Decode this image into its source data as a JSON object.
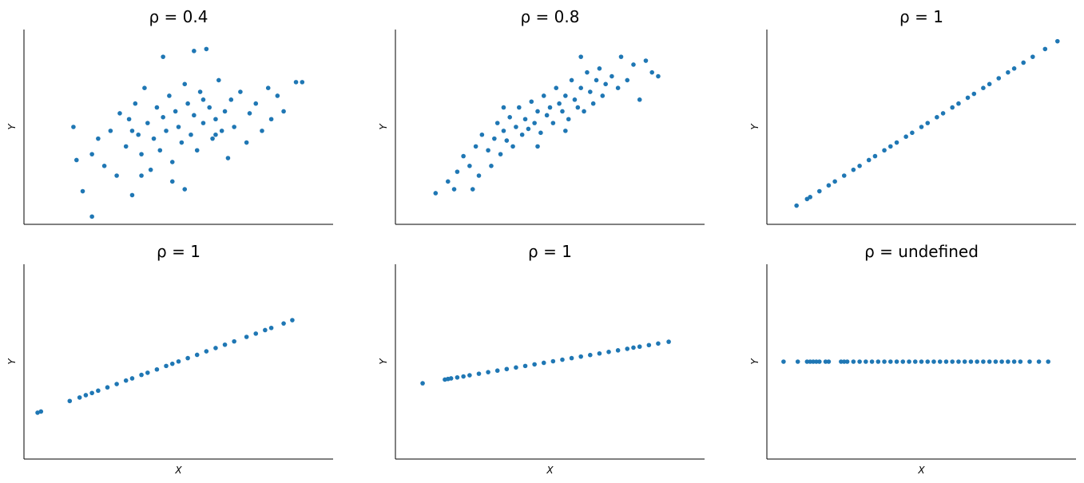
{
  "chart_data": [
    {
      "type": "scatter",
      "title": "ρ = 0.4",
      "ylabel": "Y",
      "color": "#1f77b4",
      "xlim": [
        0,
        100
      ],
      "ylim": [
        0,
        100
      ],
      "x": [
        16,
        17,
        19,
        22,
        22,
        24,
        26,
        28,
        30,
        31,
        33,
        34,
        35,
        36,
        37,
        38,
        39,
        40,
        41,
        42,
        43,
        44,
        45,
        46,
        47,
        48,
        49,
        50,
        51,
        52,
        53,
        54,
        55,
        56,
        57,
        58,
        59,
        60,
        61,
        62,
        63,
        64,
        65,
        66,
        67,
        68,
        70,
        72,
        73,
        75,
        77,
        79,
        80,
        82,
        84,
        88,
        90,
        55,
        45,
        62,
        48,
        52,
        38,
        35,
        58
      ],
      "values": [
        50,
        33,
        17,
        4,
        36,
        44,
        30,
        48,
        25,
        57,
        40,
        54,
        15,
        62,
        46,
        36,
        70,
        52,
        28,
        44,
        60,
        38,
        55,
        48,
        66,
        32,
        58,
        50,
        42,
        72,
        62,
        46,
        56,
        38,
        68,
        52,
        90,
        60,
        44,
        54,
        74,
        48,
        58,
        34,
        64,
        50,
        68,
        42,
        57,
        62,
        48,
        70,
        54,
        66,
        58,
        73,
        73,
        89,
        86,
        46,
        22,
        18,
        25,
        48,
        64
      ]
    },
    {
      "type": "scatter",
      "title": "ρ = 0.8",
      "ylabel": "Y",
      "color": "#1f77b4",
      "xlim": [
        0,
        100
      ],
      "ylim": [
        0,
        100
      ],
      "x": [
        13,
        17,
        19,
        20,
        22,
        24,
        26,
        27,
        28,
        30,
        31,
        32,
        33,
        34,
        35,
        36,
        37,
        38,
        39,
        40,
        41,
        42,
        43,
        44,
        45,
        46,
        47,
        48,
        49,
        50,
        51,
        52,
        53,
        54,
        55,
        56,
        57,
        58,
        59,
        60,
        61,
        62,
        63,
        64,
        65,
        66,
        67,
        68,
        70,
        72,
        73,
        75,
        77,
        79,
        81,
        83,
        85,
        35,
        46,
        55,
        25,
        60
      ],
      "values": [
        16,
        22,
        18,
        27,
        35,
        30,
        40,
        25,
        46,
        38,
        30,
        44,
        52,
        36,
        48,
        43,
        55,
        40,
        50,
        60,
        46,
        54,
        49,
        63,
        52,
        58,
        47,
        66,
        56,
        60,
        52,
        70,
        62,
        58,
        66,
        54,
        74,
        64,
        60,
        70,
        58,
        78,
        68,
        62,
        74,
        80,
        66,
        72,
        76,
        70,
        86,
        74,
        82,
        64,
        84,
        78,
        76,
        60,
        40,
        48,
        18,
        86
      ]
    },
    {
      "type": "scatter",
      "title": "ρ = 1",
      "ylabel": "Y",
      "color": "#1f77b4",
      "xlim": [
        0,
        100
      ],
      "ylim": [
        0,
        100
      ],
      "x": [
        9.6,
        13,
        14,
        17,
        20,
        22,
        25,
        28,
        30,
        33,
        35,
        38,
        40,
        42,
        45,
        47,
        50,
        52,
        55,
        57,
        60,
        62,
        65,
        67,
        70,
        72,
        75,
        78,
        80,
        83,
        86,
        90,
        94
      ],
      "values": [
        9.6,
        13,
        14,
        17,
        20,
        22,
        25,
        28,
        30,
        33,
        35,
        38,
        40,
        42,
        45,
        47,
        50,
        52,
        55,
        57,
        60,
        62,
        65,
        67,
        70,
        72,
        75,
        78,
        80,
        83,
        86,
        90,
        94
      ]
    },
    {
      "type": "scatter",
      "title": "ρ = 1",
      "xlabel": "X",
      "ylabel": "Y",
      "color": "#1f77b4",
      "xlim": [
        0,
        100
      ],
      "ylim": [
        0,
        100
      ],
      "x": [
        4.4,
        5.5,
        14.8,
        18,
        20,
        22,
        24,
        27,
        30,
        33,
        35,
        38,
        40,
        43,
        46,
        48,
        50,
        53,
        56,
        59,
        62,
        65,
        68,
        72,
        75,
        78,
        80,
        84,
        86.8
      ],
      "values": [
        23.8,
        24.4,
        29.8,
        31.6,
        32.8,
        33.9,
        35.1,
        36.8,
        38.5,
        40.3,
        41.4,
        43.2,
        44.3,
        46.0,
        47.8,
        48.9,
        50.1,
        51.8,
        53.5,
        55.3,
        57.0,
        58.7,
        60.4,
        62.7,
        64.4,
        66.2,
        67.3,
        69.6,
        71.3
      ]
    },
    {
      "type": "scatter",
      "title": "ρ = 1",
      "xlabel": "X",
      "ylabel": "Y",
      "color": "#1f77b4",
      "xlim": [
        0,
        100
      ],
      "ylim": [
        0,
        100
      ],
      "x": [
        8.8,
        16,
        17,
        18,
        20,
        22,
        24,
        27,
        30,
        33,
        36,
        39,
        42,
        45,
        48,
        51,
        54,
        57,
        60,
        63,
        66,
        69,
        72,
        75,
        77,
        79,
        82,
        85,
        88.4
      ],
      "values": [
        38.9,
        40.8,
        41.1,
        41.4,
        41.9,
        42.4,
        43.0,
        43.8,
        44.6,
        45.4,
        46.2,
        47.0,
        47.8,
        48.6,
        49.4,
        50.2,
        51.0,
        51.8,
        52.6,
        53.4,
        54.2,
        55.0,
        55.8,
        56.6,
        57.2,
        57.7,
        58.5,
        59.3,
        60.2
      ]
    },
    {
      "type": "scatter",
      "title": "ρ = undefined",
      "xlabel": "X",
      "ylabel": "Y",
      "color": "#1f77b4",
      "xlim": [
        0,
        100
      ],
      "ylim": [
        0,
        100
      ],
      "x": [
        5.4,
        10,
        13,
        14,
        15,
        16,
        17,
        19,
        20,
        24,
        25,
        26,
        28,
        30,
        32,
        34,
        36,
        38,
        40,
        42,
        44,
        46,
        48,
        50,
        52,
        54,
        56,
        58,
        60,
        62,
        64,
        66,
        68,
        70,
        72,
        74,
        76,
        78,
        80,
        82,
        85,
        88,
        91
      ],
      "values": [
        50,
        50,
        50,
        50,
        50,
        50,
        50,
        50,
        50,
        50,
        50,
        50,
        50,
        50,
        50,
        50,
        50,
        50,
        50,
        50,
        50,
        50,
        50,
        50,
        50,
        50,
        50,
        50,
        50,
        50,
        50,
        50,
        50,
        50,
        50,
        50,
        50,
        50,
        50,
        50,
        50,
        50,
        50
      ]
    }
  ]
}
